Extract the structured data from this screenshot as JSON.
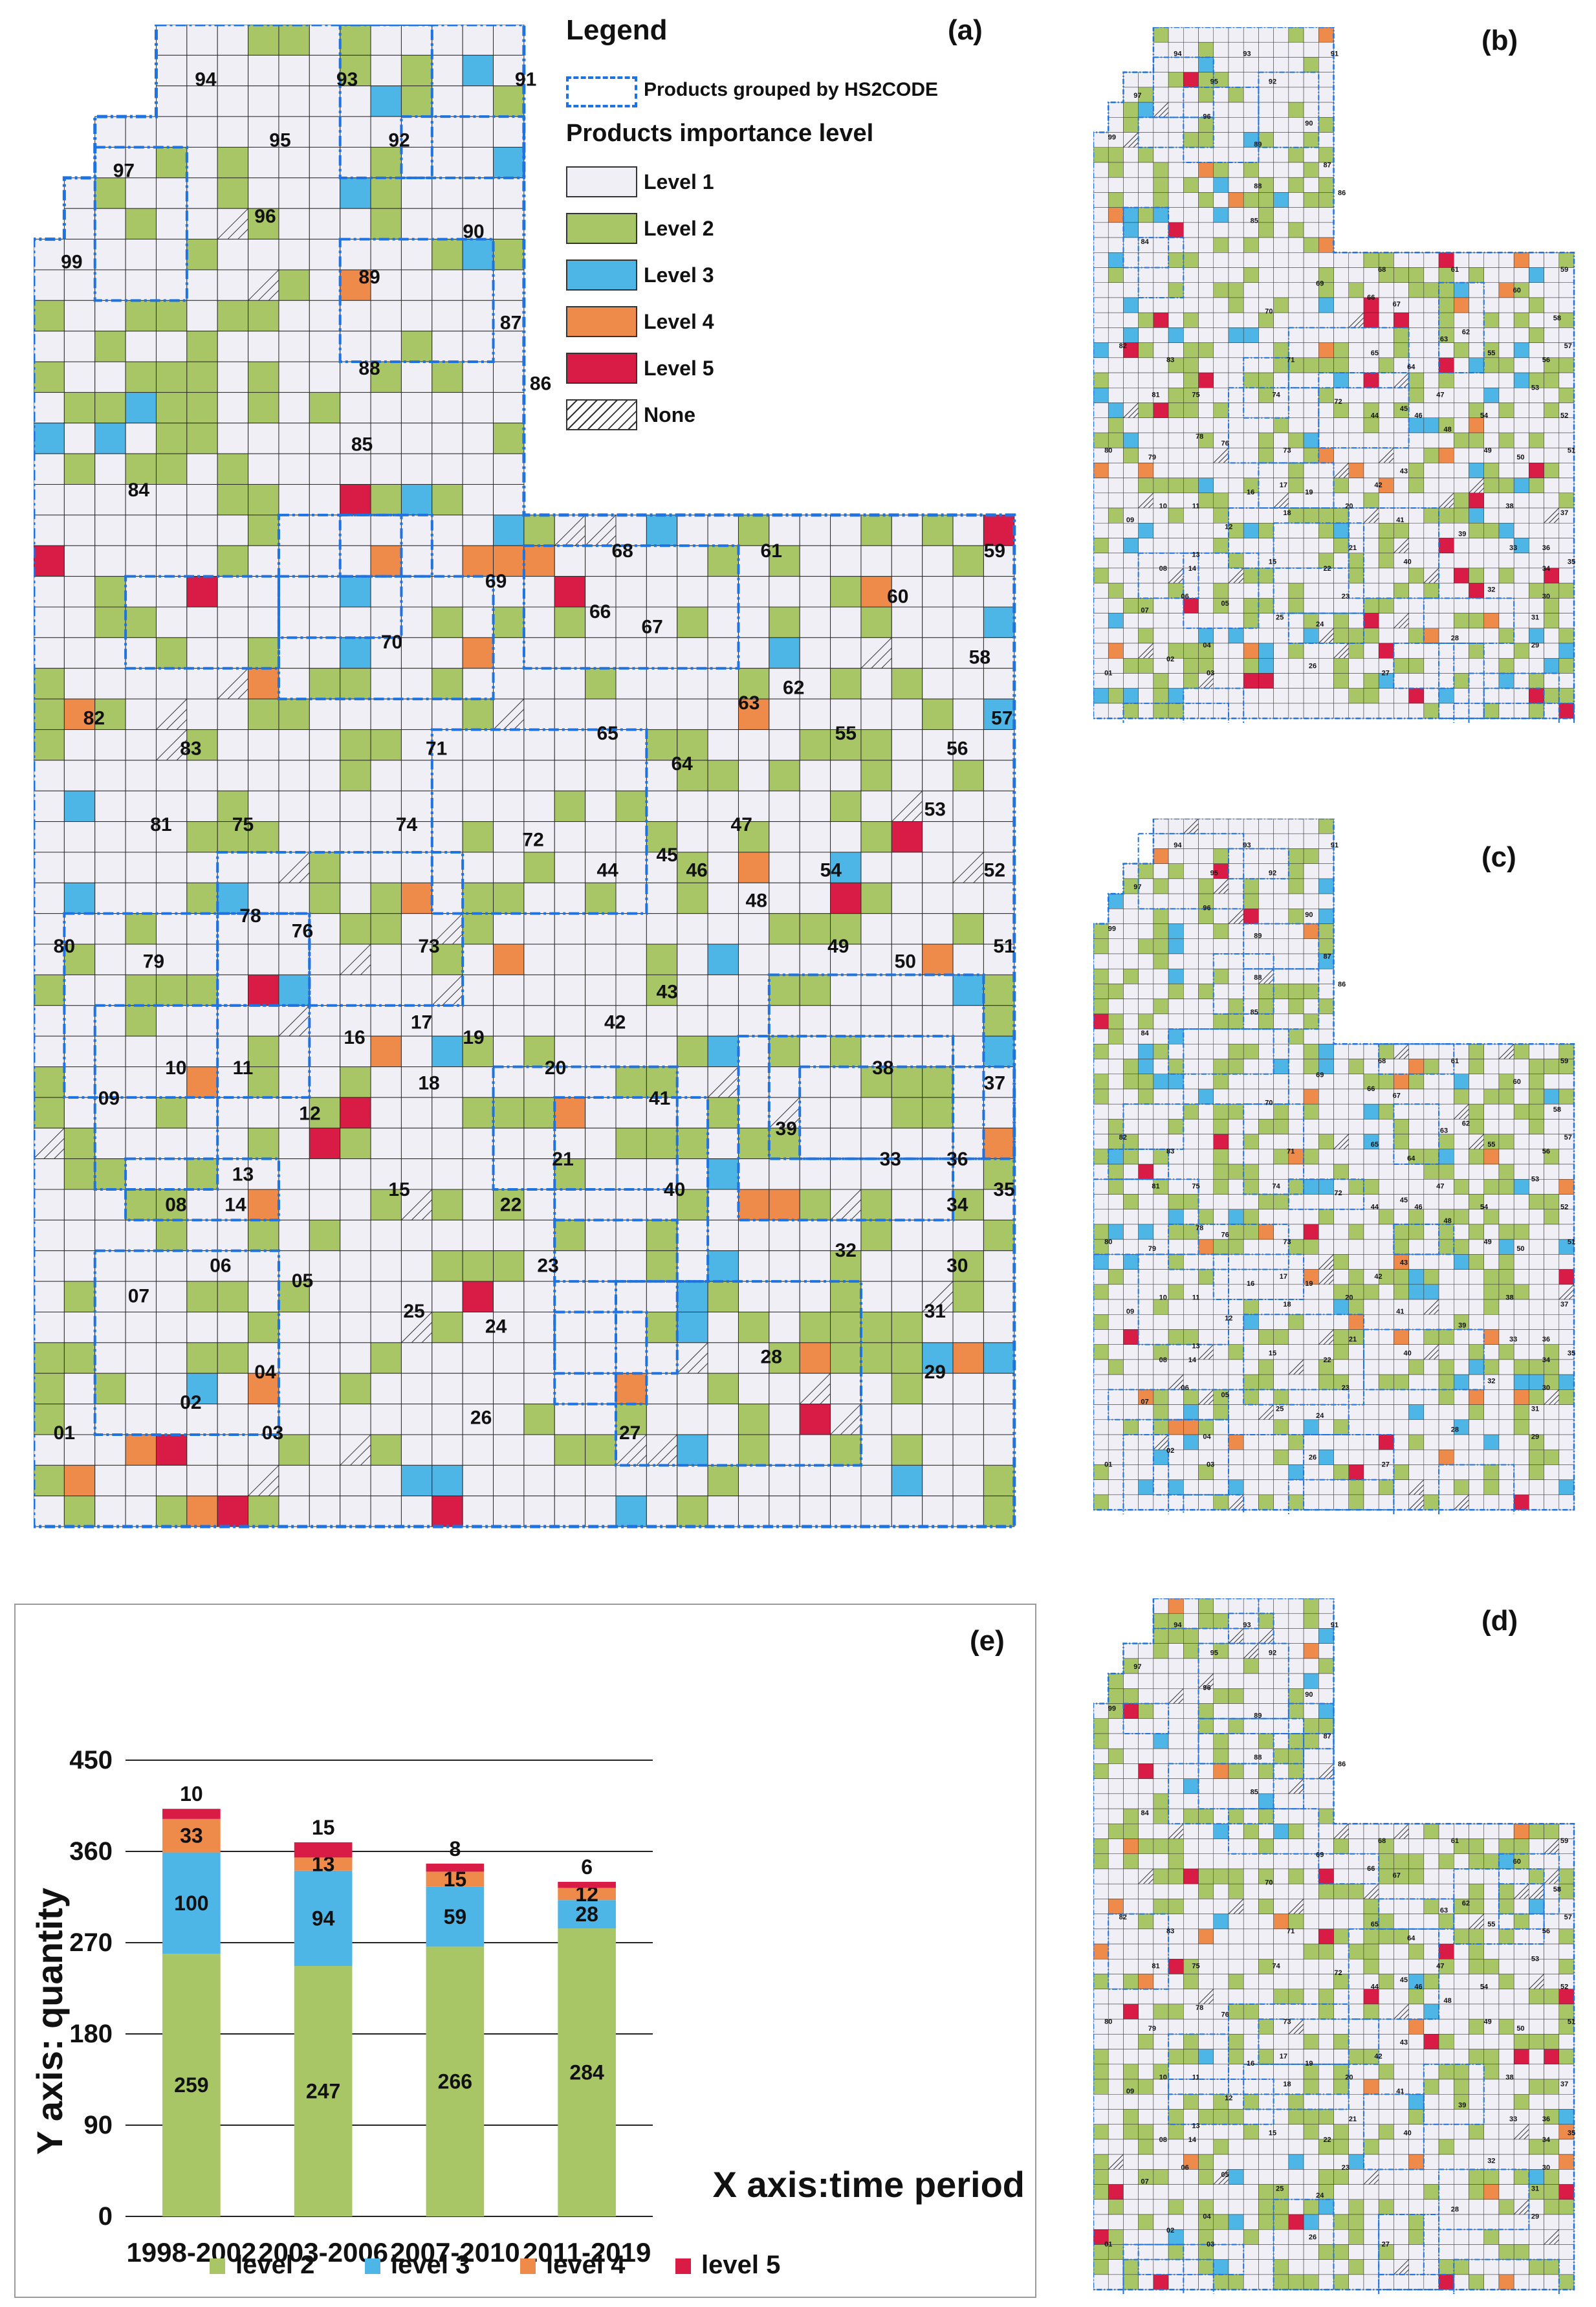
{
  "panels": {
    "a": "(a)",
    "b": "(b)",
    "c": "(c)",
    "d": "(d)",
    "e": "(e)"
  },
  "legend": {
    "title": "Legend",
    "group_label": "Products grouped by HS2CODE",
    "importance_title": "Products importance level",
    "levels": [
      {
        "label": "Level 1",
        "color": "#f1eff6"
      },
      {
        "label": "Level 2",
        "color": "#a9c667"
      },
      {
        "label": "Level 3",
        "color": "#4db6e6"
      },
      {
        "label": "Level 4",
        "color": "#ef8b4a"
      },
      {
        "label": "Level 5",
        "color": "#d81c46"
      },
      {
        "label": "None",
        "color": "hatched"
      }
    ]
  },
  "map_codes": [
    "94",
    "93",
    "91",
    "95",
    "92",
    "97",
    "96",
    "90",
    "99",
    "89",
    "87",
    "88",
    "86",
    "85",
    "84",
    "68",
    "61",
    "59",
    "69",
    "60",
    "66",
    "67",
    "70",
    "58",
    "62",
    "63",
    "82",
    "65",
    "57",
    "83",
    "71",
    "64",
    "55",
    "56",
    "53",
    "81",
    "75",
    "74",
    "72",
    "47",
    "45",
    "44",
    "54",
    "46",
    "52",
    "78",
    "48",
    "80",
    "76",
    "49",
    "79",
    "73",
    "43",
    "50",
    "51",
    "42",
    "17",
    "16",
    "19",
    "10",
    "11",
    "20",
    "38",
    "09",
    "18",
    "41",
    "12",
    "37",
    "39",
    "13",
    "33",
    "21",
    "36",
    "08",
    "15",
    "40",
    "14",
    "22",
    "34",
    "35",
    "06",
    "32",
    "30",
    "23",
    "05",
    "07",
    "25",
    "31",
    "24",
    "28",
    "29",
    "04",
    "02",
    "01",
    "26",
    "03",
    "27"
  ],
  "chart_data": {
    "type": "bar",
    "stacked": true,
    "title": "",
    "xlabel": "X axis:time period",
    "ylabel": "Y axis: quantity",
    "ylim": [
      0,
      450
    ],
    "yticks": [
      "0",
      "90",
      "180",
      "270",
      "360",
      "450"
    ],
    "grid": true,
    "legend_position": "bottom",
    "categories": [
      "1998-2002",
      "2003-2006",
      "2007-2010",
      "2011-2019"
    ],
    "series": [
      {
        "name": "level 2",
        "color": "#a9c667",
        "values": [
          259,
          247,
          266,
          284
        ]
      },
      {
        "name": "level 3",
        "color": "#4db6e6",
        "values": [
          100,
          94,
          59,
          28
        ]
      },
      {
        "name": "level 4",
        "color": "#ef8b4a",
        "values": [
          33,
          13,
          15,
          12
        ]
      },
      {
        "name": "level 5",
        "color": "#d81c46",
        "values": [
          10,
          15,
          8,
          6
        ]
      }
    ]
  }
}
